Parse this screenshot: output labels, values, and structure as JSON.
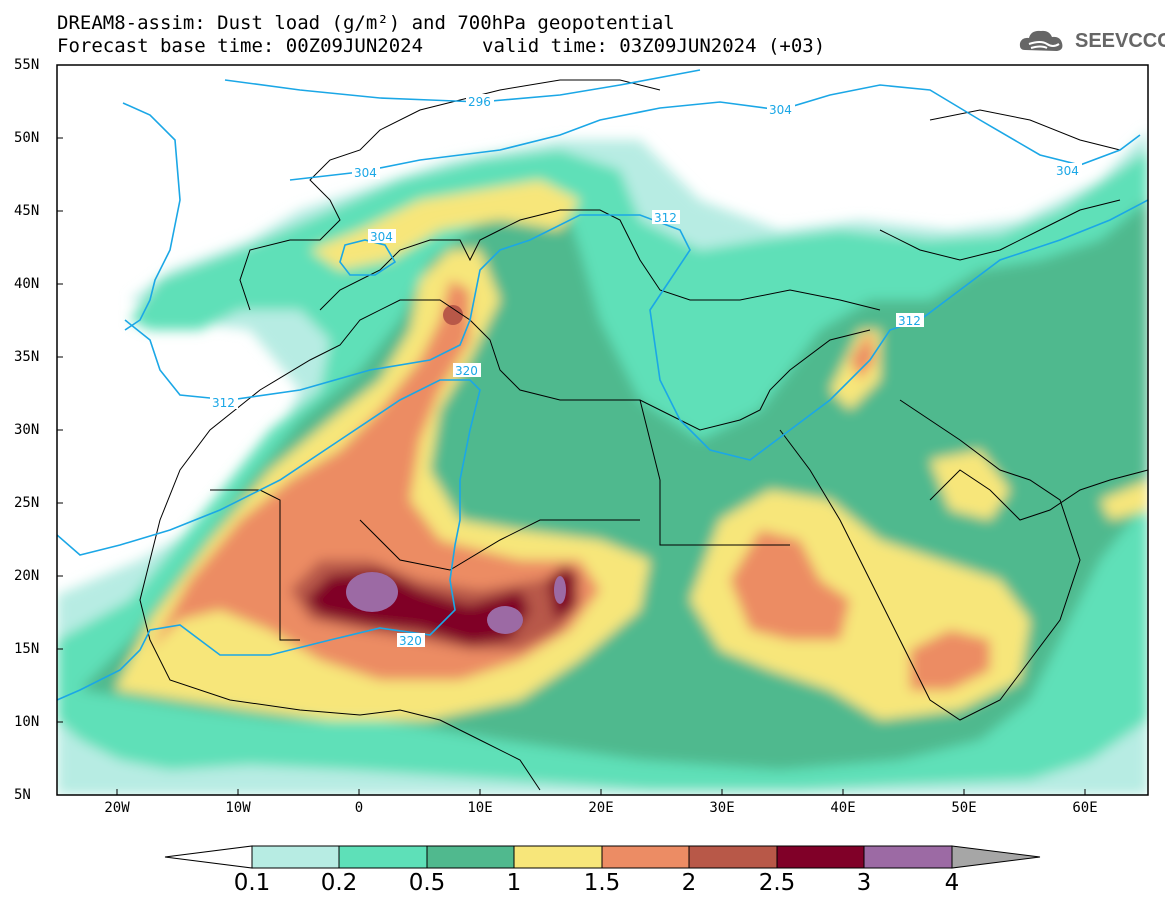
{
  "title": {
    "line1": "DREAM8-assim: Dust load (g/m²) and 700hPa geopotential",
    "line2a": "Forecast base time: 00Z09JUN2024",
    "line2b": "valid time: 03Z09JUN2024 (+03)"
  },
  "logo": {
    "text": "SEEVCCC",
    "icon": "cloud-icon"
  },
  "axes": {
    "lat_labels": [
      "55N",
      "50N",
      "45N",
      "40N",
      "35N",
      "30N",
      "25N",
      "20N",
      "15N",
      "10N",
      "5N"
    ],
    "lon_labels": [
      "20W",
      "10W",
      "0",
      "10E",
      "20E",
      "30E",
      "40E",
      "50E",
      "60E"
    ],
    "lat_range": [
      5,
      55
    ],
    "lon_range": [
      -25,
      65
    ]
  },
  "contours": {
    "labels": [
      "296",
      "304",
      "304",
      "304",
      "304",
      "312",
      "312",
      "312",
      "320",
      "320"
    ]
  },
  "colorbar": {
    "labels": [
      "0.1",
      "0.2",
      "0.5",
      "1",
      "1.5",
      "2",
      "2.5",
      "3",
      "4"
    ],
    "colors": [
      "#ffffff",
      "#b7ece3",
      "#5ee0b8",
      "#50b98e",
      "#f7e67a",
      "#ec8c64",
      "#b85848",
      "#800028",
      "#9c6aa4",
      "#a6a6a6"
    ]
  }
}
